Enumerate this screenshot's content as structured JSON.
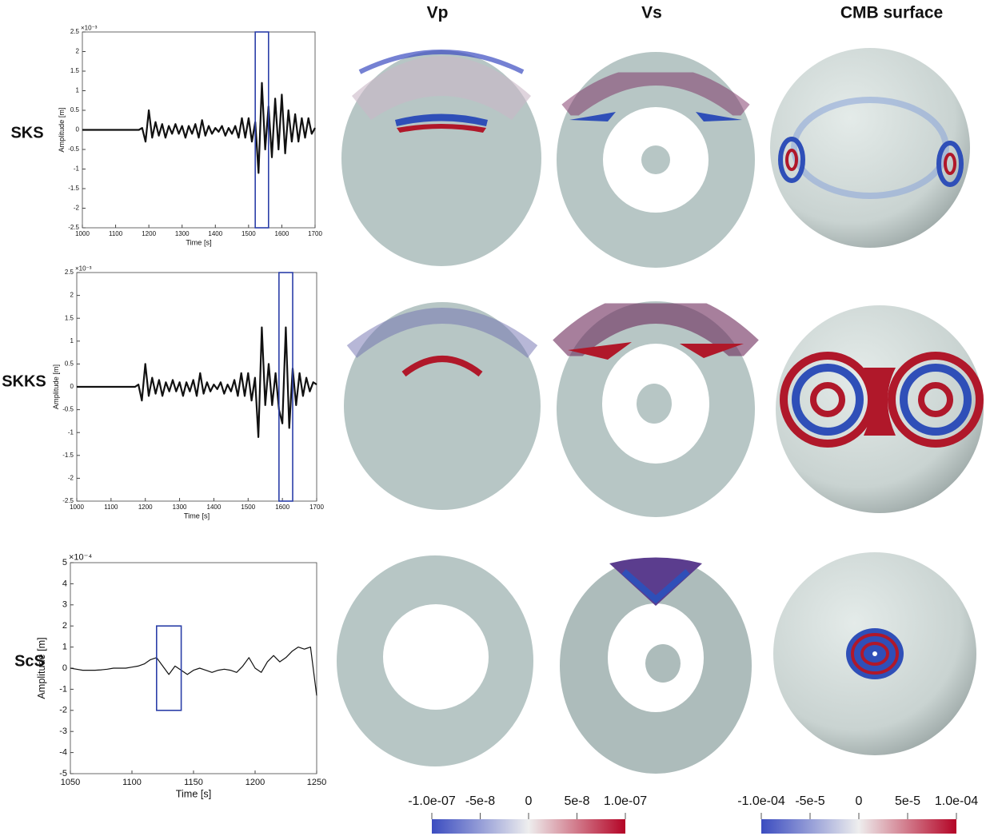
{
  "column_headers": [
    "Vp",
    "Vs",
    "CMB surface"
  ],
  "row_labels": [
    "SKS",
    "SKKS",
    "ScS"
  ],
  "colorbars": [
    {
      "lim": [
        -1e-07,
        1e-07
      ],
      "ticks": [
        {
          "value": -1e-07,
          "label": "-1.0e-07"
        },
        {
          "value": -5e-08,
          "label": "-5e-8"
        },
        0,
        {
          "value": 5e-08,
          "label": "5e-8"
        },
        {
          "value": 1e-07,
          "label": "1.0e-07"
        }
      ]
    },
    {
      "lim": [
        -0.0001,
        0.0001
      ],
      "ticks": [
        {
          "value": -0.0001,
          "label": "-1.0e-04"
        },
        {
          "value": -5e-05,
          "label": "-5e-5"
        },
        0,
        {
          "value": 5e-05,
          "label": "5e-5"
        },
        {
          "value": 0.0001,
          "label": "1.0e-04"
        }
      ]
    }
  ],
  "chart_data": [
    {
      "type": "line",
      "x_label": "Time [s]",
      "y_label": "Amplitude [m]",
      "y_exponent": "×10⁻³",
      "color": "#111111",
      "grid": false,
      "xlim": [
        1000,
        1700
      ],
      "xticks": [
        1000,
        1100,
        1200,
        1300,
        1400,
        1500,
        1600,
        1700
      ],
      "ylim": [
        -2.5,
        2.5
      ],
      "yticks": [
        -2.5,
        -2,
        -1.5,
        -1,
        -0.5,
        0,
        0.5,
        1,
        1.5,
        2,
        2.5
      ],
      "window": {
        "x": [
          1520,
          1560
        ],
        "y": [
          -2.5,
          2.5
        ],
        "color": "#2b3fa8"
      },
      "x": [
        1000,
        1010,
        1020,
        1030,
        1040,
        1050,
        1060,
        1070,
        1080,
        1090,
        1100,
        1110,
        1120,
        1130,
        1140,
        1150,
        1160,
        1170,
        1180,
        1190,
        1200,
        1210,
        1220,
        1230,
        1240,
        1250,
        1260,
        1270,
        1280,
        1290,
        1300,
        1310,
        1320,
        1330,
        1340,
        1350,
        1360,
        1370,
        1380,
        1390,
        1400,
        1410,
        1420,
        1430,
        1440,
        1450,
        1460,
        1470,
        1480,
        1490,
        1500,
        1510,
        1520,
        1530,
        1540,
        1550,
        1560,
        1570,
        1580,
        1590,
        1600,
        1610,
        1620,
        1630,
        1640,
        1650,
        1660,
        1670,
        1680,
        1690,
        1700
      ],
      "values": [
        0,
        0,
        0,
        0,
        0,
        0,
        0,
        0,
        0,
        0,
        0,
        0,
        0,
        0,
        0,
        0,
        0,
        0,
        0.05,
        -0.3,
        0.5,
        -0.2,
        0.2,
        -0.15,
        0.15,
        -0.2,
        0.1,
        -0.1,
        0.15,
        -0.1,
        0.1,
        -0.2,
        0.1,
        -0.1,
        0.15,
        -0.2,
        0.25,
        -0.15,
        0.1,
        -0.1,
        0.05,
        -0.05,
        0.1,
        -0.15,
        0.05,
        -0.1,
        0.1,
        -0.2,
        0.3,
        -0.2,
        0.3,
        -0.3,
        0.2,
        -1.1,
        1.2,
        -0.5,
        0.6,
        -0.7,
        0.8,
        -0.5,
        0.9,
        -0.6,
        0.5,
        -0.3,
        0.4,
        -0.3,
        0.3,
        -0.2,
        0.3,
        -0.1,
        0.05
      ]
    },
    {
      "type": "line",
      "x_label": "Time [s]",
      "y_label": "Amplitude [m]",
      "y_exponent": "×10⁻³",
      "color": "#111111",
      "grid": false,
      "xlim": [
        1000,
        1700
      ],
      "xticks": [
        1000,
        1100,
        1200,
        1300,
        1400,
        1500,
        1600,
        1700
      ],
      "ylim": [
        -2.5,
        2.5
      ],
      "yticks": [
        -2.5,
        -2,
        -1.5,
        -1,
        -0.5,
        0,
        0.5,
        1,
        1.5,
        2,
        2.5
      ],
      "window": {
        "x": [
          1590,
          1630
        ],
        "y": [
          -2.5,
          2.5
        ],
        "color": "#2b3fa8"
      },
      "x": [
        1000,
        1010,
        1020,
        1030,
        1040,
        1050,
        1060,
        1070,
        1080,
        1090,
        1100,
        1110,
        1120,
        1130,
        1140,
        1150,
        1160,
        1170,
        1180,
        1190,
        1200,
        1210,
        1220,
        1230,
        1240,
        1250,
        1260,
        1270,
        1280,
        1290,
        1300,
        1310,
        1320,
        1330,
        1340,
        1350,
        1360,
        1370,
        1380,
        1390,
        1400,
        1410,
        1420,
        1430,
        1440,
        1450,
        1460,
        1470,
        1480,
        1490,
        1500,
        1510,
        1520,
        1530,
        1540,
        1550,
        1560,
        1570,
        1580,
        1590,
        1600,
        1610,
        1620,
        1630,
        1640,
        1650,
        1660,
        1670,
        1680,
        1690,
        1700
      ],
      "values": [
        0,
        0,
        0,
        0,
        0,
        0,
        0,
        0,
        0,
        0,
        0,
        0,
        0,
        0,
        0,
        0,
        0,
        0,
        0.05,
        -0.3,
        0.5,
        -0.2,
        0.2,
        -0.15,
        0.15,
        -0.2,
        0.1,
        -0.1,
        0.15,
        -0.1,
        0.1,
        -0.2,
        0.1,
        -0.1,
        0.15,
        -0.2,
        0.3,
        -0.15,
        0.1,
        -0.1,
        0.05,
        -0.05,
        0.1,
        -0.15,
        0.05,
        -0.1,
        0.15,
        -0.2,
        0.3,
        -0.2,
        0.3,
        -0.3,
        0.2,
        -1.1,
        1.3,
        -0.4,
        0.5,
        -0.4,
        0.3,
        -0.5,
        -0.8,
        1.3,
        -0.9,
        0.4,
        -0.4,
        0.3,
        -0.2,
        0.2,
        -0.1,
        0.1,
        0.05
      ]
    },
    {
      "type": "line",
      "x_label": "Time [s]",
      "y_label": "Amplitude [m]",
      "y_exponent": "×10⁻⁴",
      "color": "#111111",
      "grid": false,
      "xlim": [
        1050,
        1250
      ],
      "xticks": [
        1050,
        1100,
        1150,
        1200,
        1250
      ],
      "ylim": [
        -5,
        5
      ],
      "yticks": [
        -5,
        -4,
        -3,
        -2,
        -1,
        0,
        1,
        2,
        3,
        4,
        5
      ],
      "window": {
        "x": [
          1120,
          1140
        ],
        "y": [
          -2,
          2
        ],
        "color": "#2b3fa8"
      },
      "x": [
        1050,
        1055,
        1060,
        1065,
        1070,
        1075,
        1080,
        1085,
        1090,
        1095,
        1100,
        1105,
        1110,
        1115,
        1120,
        1125,
        1130,
        1135,
        1140,
        1145,
        1150,
        1155,
        1160,
        1165,
        1170,
        1175,
        1180,
        1185,
        1190,
        1195,
        1200,
        1205,
        1210,
        1215,
        1220,
        1225,
        1230,
        1235,
        1240,
        1245,
        1250
      ],
      "values": [
        0,
        -0.05,
        -0.1,
        -0.1,
        -0.1,
        -0.08,
        -0.05,
        0,
        0,
        0,
        0.05,
        0.1,
        0.2,
        0.4,
        0.5,
        0.1,
        -0.3,
        0.1,
        -0.1,
        -0.3,
        -0.1,
        0,
        -0.1,
        -0.2,
        -0.1,
        -0.05,
        -0.1,
        -0.2,
        0.1,
        0.5,
        0,
        -0.2,
        0.3,
        0.6,
        0.3,
        0.5,
        0.8,
        1.0,
        0.9,
        1.0,
        -1.3
      ]
    }
  ]
}
